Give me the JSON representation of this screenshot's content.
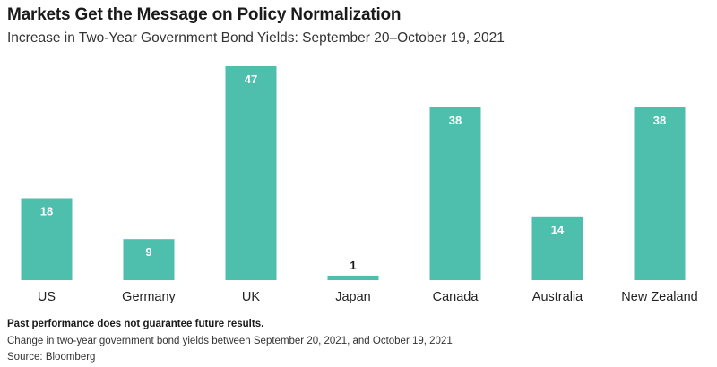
{
  "chart_data": {
    "type": "bar",
    "title": "Markets Get the Message on Policy Normalization",
    "subtitle": "Increase in Two-Year Government Bond Yields: September 20–October 19, 2021",
    "categories": [
      "US",
      "Germany",
      "UK",
      "Japan",
      "Canada",
      "Australia",
      "New Zealand"
    ],
    "values": [
      18,
      9,
      47,
      1,
      38,
      14,
      38
    ],
    "value_labels": [
      "18",
      "9",
      "47",
      "1",
      "38",
      "14",
      "38"
    ],
    "ylim": [
      0,
      47
    ],
    "grid": false,
    "bar_color": "#4fbfad",
    "label_inside_color": "#ffffff",
    "label_outside_color": "#1a1a1a"
  },
  "footer": {
    "disclaimer": "Past performance does not guarantee future results.",
    "note": "Change in two-year government bond yields between September 20, 2021, and October 19, 2021",
    "source": "Source: Bloomberg"
  }
}
